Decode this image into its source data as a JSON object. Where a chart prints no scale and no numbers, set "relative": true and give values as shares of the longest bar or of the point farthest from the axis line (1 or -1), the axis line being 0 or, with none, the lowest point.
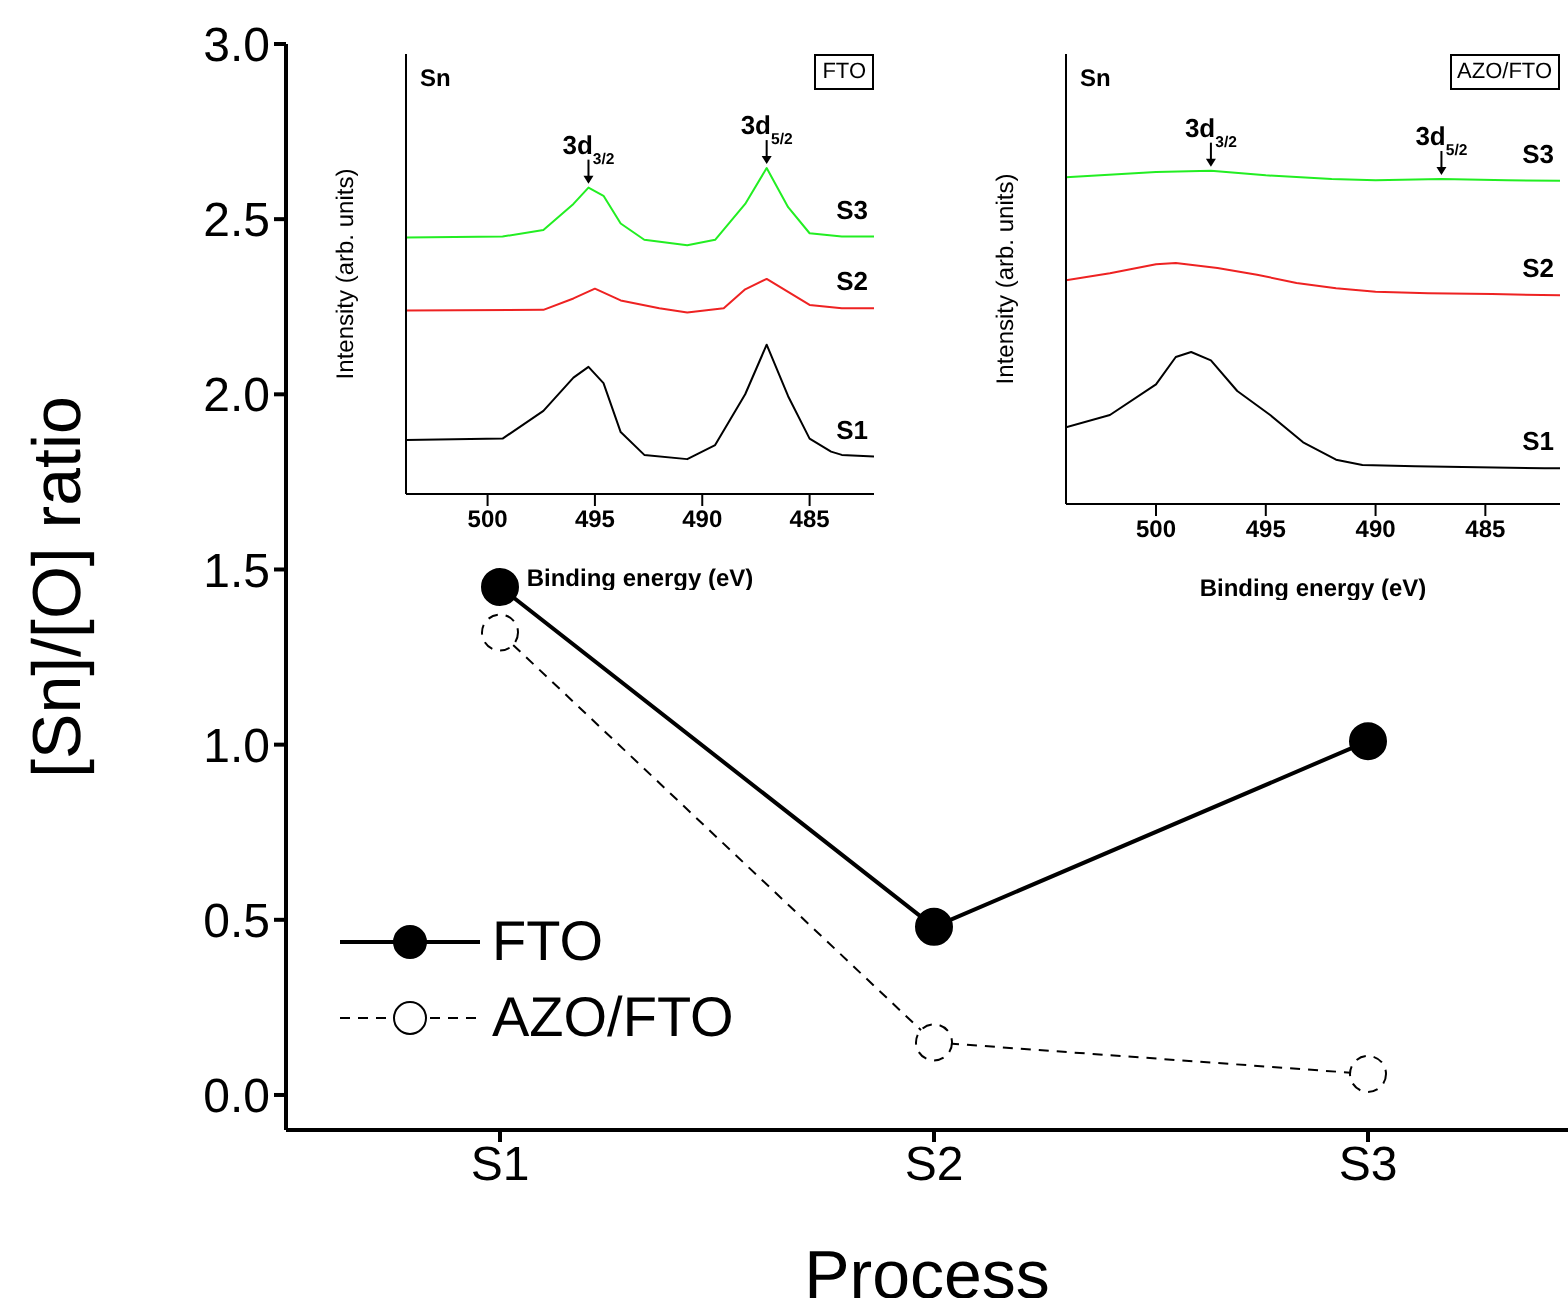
{
  "chart_data": [
    {
      "type": "line",
      "xlabel": "Process",
      "ylabel": "[Sn]/[O] ratio",
      "categories": [
        "S1",
        "S2",
        "S3"
      ],
      "ylim": [
        -0.1,
        3.0
      ],
      "yticks": [
        {
          "value": 0,
          "label": "0.0"
        },
        0.5,
        {
          "value": 1,
          "label": "1.0"
        },
        1.5,
        {
          "value": 2,
          "label": "2.0"
        },
        2.5,
        {
          "value": 3,
          "label": "3.0"
        }
      ],
      "grid": false,
      "legend": "bottom left",
      "marker": "circle",
      "series": [
        {
          "name": "FTO",
          "color": "#000000",
          "line_style": "solid",
          "values": [
            1.45,
            0.48,
            1.01
          ]
        },
        {
          "name": "AZO/FTO",
          "color": "#000000",
          "line_style": "dashed",
          "values": [
            1.32,
            0.15,
            0.06
          ]
        }
      ]
    },
    {
      "type": "line",
      "relative": true,
      "xlabel": "Binding energy (eV)",
      "ylabel": "Intensity (arb. units)",
      "xlim": [
        503.8,
        482
      ],
      "xticks": [
        500,
        495,
        490,
        485
      ],
      "marker": "none",
      "annotations": [
        "Sn",
        "FTO",
        {
          "text": "3d$_{3/2}$",
          "x": 495.3,
          "y": 0.94
        },
        {
          "text": "3d$_{5/2}$",
          "x": 487.0,
          "y": 1.0
        }
      ],
      "series": [
        {
          "name": "S3",
          "color": "#22ee22",
          "x": [
            503.8,
            499.3,
            497.4,
            496.0,
            495.3,
            494.6,
            493.8,
            492.7,
            490.7,
            489.4,
            488.0,
            487.0,
            486.0,
            485.0,
            483.5,
            482
          ],
          "values": [
            0.787,
            0.79,
            0.81,
            0.89,
            0.94,
            0.915,
            0.83,
            0.78,
            0.763,
            0.78,
            0.89,
            1.0,
            0.88,
            0.8,
            0.79,
            0.79
          ]
        },
        {
          "name": "S2",
          "color": "#ee2222",
          "x": [
            503.8,
            497.4,
            496.0,
            495.0,
            493.8,
            492.0,
            490.7,
            489.0,
            488.0,
            487.0,
            486.0,
            485.0,
            483.5,
            482
          ],
          "values": [
            0.563,
            0.565,
            0.6,
            0.63,
            0.594,
            0.57,
            0.557,
            0.57,
            0.628,
            0.66,
            0.62,
            0.58,
            0.57,
            0.57
          ]
        },
        {
          "name": "S1",
          "color": "#000000",
          "x": [
            503.8,
            499.3,
            497.4,
            496.0,
            495.3,
            494.6,
            493.8,
            492.7,
            490.7,
            489.4,
            488.0,
            487.0,
            486.0,
            485.0,
            484.0,
            483.5,
            482
          ],
          "values": [
            0.166,
            0.17,
            0.255,
            0.357,
            0.39,
            0.34,
            0.19,
            0.12,
            0.107,
            0.15,
            0.306,
            0.458,
            0.3,
            0.17,
            0.13,
            0.12,
            0.115
          ]
        }
      ]
    },
    {
      "type": "line",
      "relative": true,
      "xlabel": "Binding energy (eV)",
      "ylabel": "Intensity (arb. units)",
      "xlim": [
        504.1,
        481.6
      ],
      "xticks": [
        500,
        495,
        490,
        485
      ],
      "marker": "none",
      "annotations": [
        "Sn",
        "AZO/FTO",
        {
          "text": "3d$_{3/2}$",
          "x": 497.5,
          "y": 1.0
        },
        {
          "text": "3d$_{5/2}$",
          "x": 487.0,
          "y": 0.975
        }
      ],
      "series": [
        {
          "name": "S3",
          "color": "#22ee22",
          "x": [
            504.1,
            500,
            497.5,
            495,
            492,
            490,
            487,
            484,
            481.6
          ],
          "values": [
            0.98,
            0.996,
            1.0,
            0.986,
            0.975,
            0.971,
            0.975,
            0.971,
            0.97
          ]
        },
        {
          "name": "S2",
          "color": "#ee2222",
          "x": [
            504.1,
            502.1,
            500,
            499.1,
            497.2,
            495.4,
            493.6,
            491.8,
            490,
            487.6,
            484.7,
            481.6
          ],
          "values": [
            0.671,
            0.692,
            0.719,
            0.723,
            0.708,
            0.688,
            0.663,
            0.647,
            0.637,
            0.632,
            0.63,
            0.626
          ]
        },
        {
          "name": "S1",
          "color": "#000000",
          "x": [
            504.1,
            502.1,
            500,
            499.1,
            498.4,
            497.5,
            496.3,
            494.8,
            493.3,
            491.8,
            490.6,
            488.2,
            482.3,
            481.6
          ],
          "values": [
            0.23,
            0.267,
            0.359,
            0.441,
            0.456,
            0.431,
            0.339,
            0.267,
            0.185,
            0.133,
            0.117,
            0.113,
            0.107,
            0.107
          ]
        }
      ]
    }
  ]
}
